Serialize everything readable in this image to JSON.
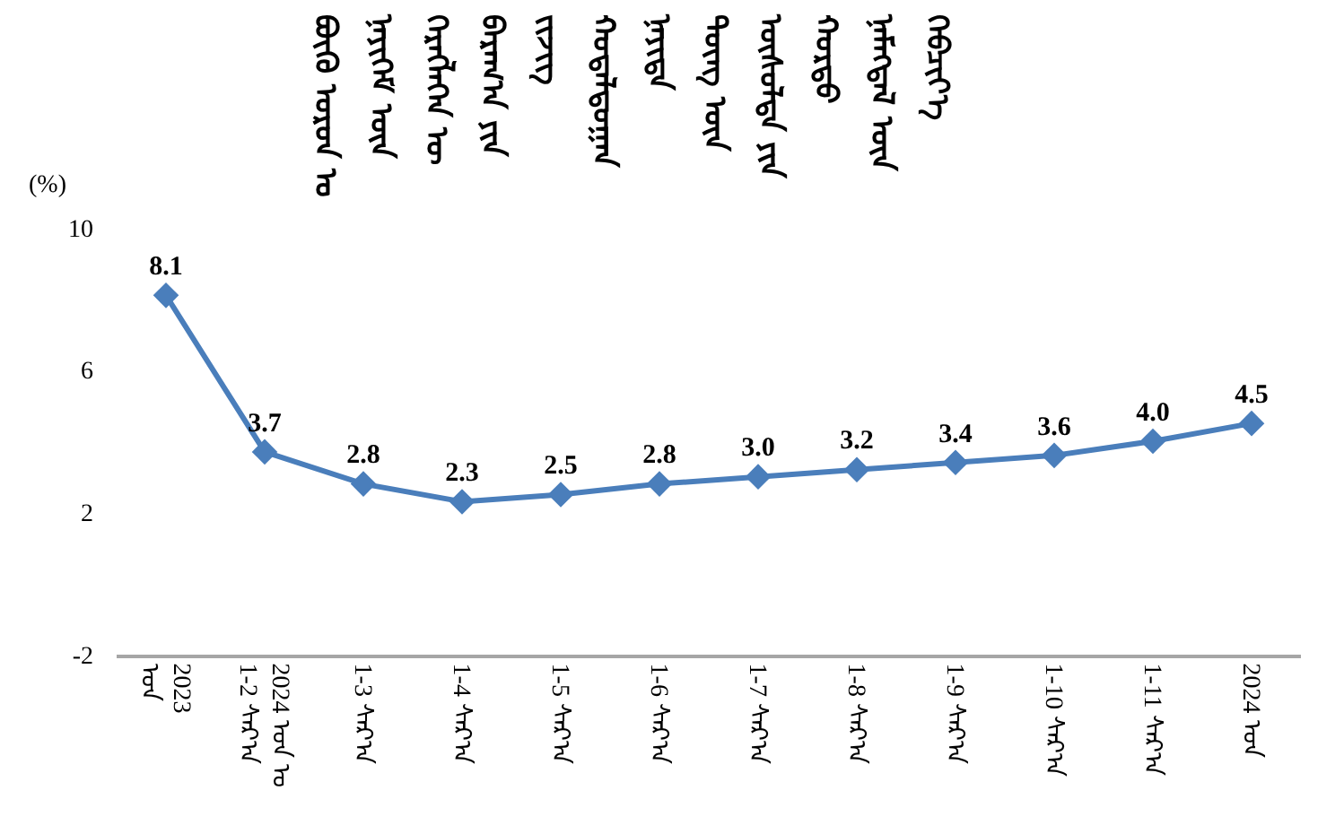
{
  "chart_data": {
    "type": "line",
    "title": "ᠪᠦᠬᠦ ᠣᠷᠤᠨ ᠤ\nᠨᠡᠶᠢᠭᠡᠮ ᠦᠨ\nᠬᠡᠷᠡᠭᠯᠡᠭᠡᠨ ᠦ\nᠪᠠᠷᠠᠭ᠎ᠠ ᠶᠢᠨ\nᠵᠢᠵᠢᠭ\nᠬᠤᠳᠠᠯᠳᠤᠭᠠᠨ\nᠨᠡᠶᠢᠲᠡ\nᠳᠦᠩ ᠦᠨ\nᠥᠰᠦᠯᠲᠡ ᠶᠢᠨ\nᠬᠤᠷᠳᠤ\nᠨᠡᠮᠡᠭᠳᠡᠯ ᠦᠨ\nᠬᠡᠪᠴᠢᠶ᠎ᠡ",
    "ylabel": "(%)",
    "categories": [
      "2023\nᠣᠨ",
      "2024 ᠣᠨ ᠤ\n1-2 ᠰᠠᠷ᠎ᠠ",
      "1-3 ᠰᠠᠷ᠎ᠠ",
      "1-4 ᠰᠠᠷ᠎ᠠ",
      "1-5 ᠰᠠᠷ᠎ᠠ",
      "1-6 ᠰᠠᠷ᠎ᠠ",
      "1-7 ᠰᠠᠷ᠎ᠠ",
      "1-8 ᠰᠠᠷ᠎ᠠ",
      "1-9 ᠰᠠᠷ᠎ᠠ",
      "1-10 ᠰᠠᠷ᠎ᠠ",
      "1-11 ᠰᠠᠷ᠎ᠠ",
      "2024 ᠣᠨ"
    ],
    "series": [
      {
        "color": "#4a7ebb",
        "values": [
          8.1,
          3.7,
          2.8,
          2.3,
          2.5,
          2.8,
          3.0,
          3.2,
          3.4,
          3.6,
          4.0,
          4.5
        ],
        "value_labels": [
          "8.1",
          "3.7",
          "2.8",
          "2.3",
          "2.5",
          "2.8",
          "3.0",
          "3.2",
          "3.4",
          "3.6",
          "4.0",
          "4.5"
        ]
      }
    ],
    "ylim": [
      -2,
      10
    ],
    "yticks": [
      -2,
      2,
      6,
      10
    ],
    "grid": false,
    "marker": "diamond",
    "line_style": "solid"
  }
}
